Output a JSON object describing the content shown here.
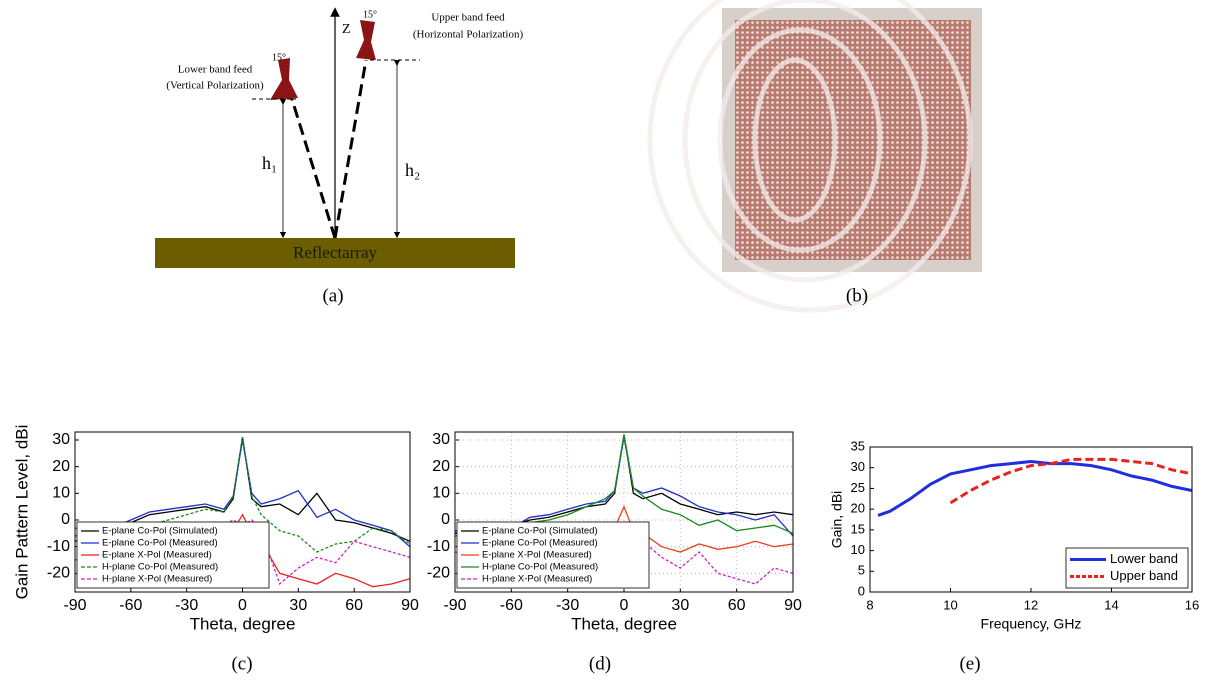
{
  "figure_a": {
    "z_label": "Z",
    "angle_lower": "15°",
    "angle_upper": "15°",
    "lower_feed": [
      "Lower band feed",
      "(Vertical Polarization)"
    ],
    "upper_feed": [
      "Upper band feed",
      "(Horizontal Polarization)"
    ],
    "h1": "h₁",
    "h2": "h₂",
    "reflectarray": "Reflectarray"
  },
  "captions": [
    "(a)",
    "(b)",
    "(c)",
    "(d)",
    "(e)"
  ],
  "chart_data": [
    {
      "type": "line",
      "x_label": "Theta, degree",
      "y_label": "Gain Pattern Level, dBi",
      "x": [
        -90,
        -80,
        -70,
        -60,
        -50,
        -40,
        -30,
        -20,
        -10,
        -5,
        0,
        5,
        10,
        20,
        30,
        40,
        50,
        60,
        70,
        80,
        90
      ],
      "xlim": [
        -90,
        90
      ],
      "xticks": [
        -90,
        -60,
        -30,
        0,
        30,
        60,
        90
      ],
      "ylim": [
        -27,
        33
      ],
      "yticks": [
        -20,
        -10,
        0,
        10,
        20,
        30
      ],
      "grid": false,
      "legend": "lower left",
      "series": [
        {
          "name": "E-plane Co-Pol (Simulated)",
          "color": "#000000",
          "line_style": "solid",
          "values": [
            -8,
            -6,
            -2,
            -1,
            2,
            3,
            4,
            5,
            3,
            8,
            31,
            8,
            5,
            6,
            2,
            10,
            0,
            -1,
            -3,
            -5,
            -8
          ]
        },
        {
          "name": "E-plane Co-Pol (Measured)",
          "color": "#1f2fd0",
          "line_style": "solid",
          "values": [
            -6,
            -5,
            -3,
            0,
            3,
            4,
            5,
            6,
            4,
            9,
            30,
            10,
            6,
            8,
            11,
            1,
            4,
            0,
            -2,
            -4,
            -10
          ]
        },
        {
          "name": "E-plane X-Pol (Measured)",
          "color": "#e8221e",
          "line_style": "solid",
          "values": [
            -20,
            -22,
            -18,
            -20,
            -17,
            -15,
            -13,
            -10,
            -6,
            -4,
            2,
            -5,
            -8,
            -20,
            -22,
            -24,
            -20,
            -22,
            -25,
            -24,
            -22
          ]
        },
        {
          "name": "H-plane Co-Pol (Measured)",
          "color": "#1a8a1a",
          "line_style": "dashed",
          "values": [
            -3,
            -5,
            -6,
            -5,
            -2,
            0,
            2,
            4,
            3,
            9,
            31,
            9,
            2,
            -4,
            -6,
            -12,
            -9,
            -8,
            -3,
            -4,
            -9
          ]
        },
        {
          "name": "H-plane X-Pol (Measured)",
          "color": "#d020c8",
          "line_style": "dashed",
          "values": [
            -15,
            -14,
            -12,
            -10,
            -8,
            -6,
            -4,
            -3,
            -2,
            0,
            -2,
            0,
            -4,
            -24,
            -18,
            -14,
            -16,
            -8,
            -10,
            -12,
            -14
          ]
        }
      ]
    },
    {
      "type": "line",
      "x_label": "Theta, degree",
      "x": [
        -90,
        -80,
        -70,
        -60,
        -50,
        -40,
        -30,
        -20,
        -10,
        -5,
        0,
        5,
        10,
        20,
        30,
        40,
        50,
        60,
        70,
        80,
        90
      ],
      "xlim": [
        -90,
        90
      ],
      "xticks": [
        -90,
        -60,
        -30,
        0,
        30,
        60,
        90
      ],
      "ylim": [
        -27,
        33
      ],
      "yticks": [
        -20,
        -10,
        0,
        10,
        20,
        30
      ],
      "grid": true,
      "legend": "lower left",
      "series": [
        {
          "name": "E-plane Co-Pol (Simulated)",
          "color": "#000000",
          "line_style": "solid",
          "values": [
            -5,
            -4,
            -3,
            -2,
            0,
            1,
            3,
            5,
            6,
            10,
            32,
            10,
            8,
            10,
            6,
            4,
            2,
            3,
            2,
            3,
            2
          ]
        },
        {
          "name": "E-plane Co-Pol (Measured)",
          "color": "#1f2fd0",
          "line_style": "solid",
          "values": [
            -4,
            -5,
            -2,
            -3,
            1,
            2,
            4,
            6,
            7,
            11,
            31,
            12,
            10,
            12,
            9,
            5,
            3,
            2,
            0,
            2,
            -6
          ]
        },
        {
          "name": "E-plane X-Pol (Measured)",
          "color": "#e8421e",
          "line_style": "solid",
          "values": [
            -12,
            -14,
            -10,
            -8,
            -9,
            -7,
            -5,
            -6,
            -2,
            -3,
            5,
            -4,
            -5,
            -10,
            -12,
            -9,
            -11,
            -10,
            -8,
            -10,
            -9
          ]
        },
        {
          "name": "H-plane Co-Pol (Measured)",
          "color": "#1a8a1a",
          "line_style": "solid",
          "values": [
            -6,
            -5,
            -4,
            -3,
            -1,
            0,
            2,
            5,
            8,
            11,
            32,
            12,
            9,
            4,
            2,
            -2,
            0,
            -4,
            -3,
            -2,
            -5
          ]
        },
        {
          "name": "H-plane X-Pol (Measured)",
          "color": "#d020c8",
          "line_style": "dashed",
          "values": [
            -20,
            -22,
            -18,
            -24,
            -16,
            -14,
            -12,
            -10,
            -8,
            -6,
            -4,
            -6,
            -8,
            -14,
            -18,
            -12,
            -20,
            -22,
            -24,
            -18,
            -20
          ]
        }
      ]
    },
    {
      "type": "line",
      "x_label": "Frequency, GHz",
      "y_label": "Gain, dBi",
      "x": [
        8.2,
        8.5,
        9,
        9.5,
        10,
        10.5,
        11,
        11.5,
        12,
        12.5,
        13,
        13.5,
        14,
        14.5,
        15,
        15.5,
        16
      ],
      "xlim": [
        8,
        16
      ],
      "xticks": [
        8,
        10,
        12,
        14,
        16
      ],
      "ylim": [
        0,
        35
      ],
      "yticks": [
        0,
        5,
        10,
        15,
        20,
        25,
        30,
        35
      ],
      "grid": false,
      "legend": "lower right",
      "series": [
        {
          "name": "Lower band",
          "color": "#1f2fe0",
          "line_style": "solid",
          "values": [
            18.5,
            19.5,
            22.5,
            26,
            28.5,
            29.5,
            30.5,
            31,
            31.5,
            31,
            31,
            30.5,
            29.5,
            28,
            27,
            25.5,
            24.5
          ]
        },
        {
          "name": "Upper band",
          "color": "#e8221e",
          "line_style": "dashed",
          "values": [
            null,
            null,
            null,
            null,
            21.5,
            24.5,
            27,
            29,
            30.5,
            31,
            32,
            32,
            32,
            31.5,
            31,
            29.5,
            28.5
          ]
        }
      ]
    }
  ]
}
